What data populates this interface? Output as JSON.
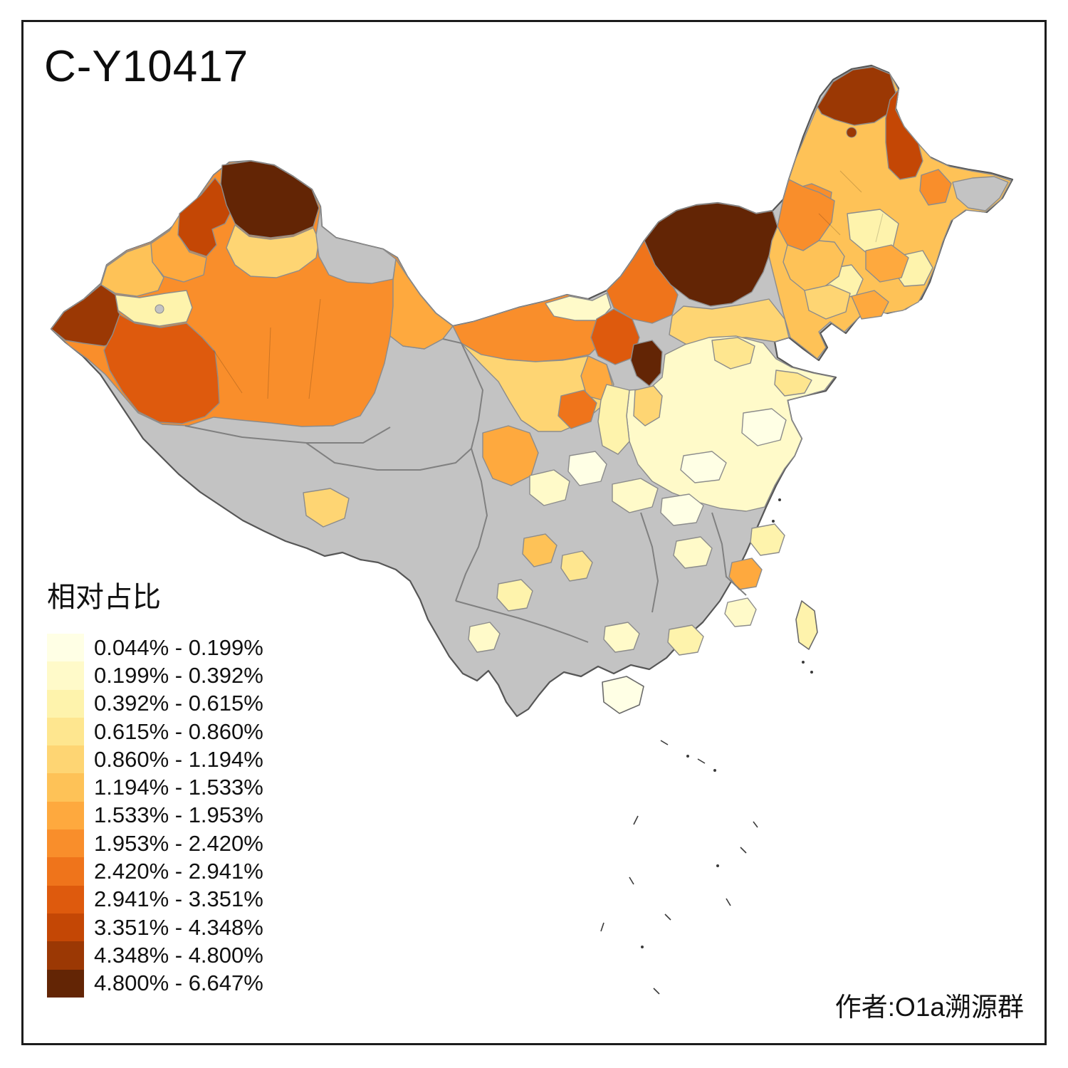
{
  "title": "C-Y10417",
  "legend": {
    "title": "相对占比",
    "items": [
      {
        "label": "0.044% - 0.199%",
        "color": "#FFFFE5"
      },
      {
        "label": "0.199% - 0.392%",
        "color": "#FFFAC9"
      },
      {
        "label": "0.392% - 0.615%",
        "color": "#FEF3AC"
      },
      {
        "label": "0.615% - 0.860%",
        "color": "#FEE68F"
      },
      {
        "label": "0.860% - 1.194%",
        "color": "#FED573"
      },
      {
        "label": "1.194% - 1.533%",
        "color": "#FEC257"
      },
      {
        "label": "1.533% - 1.953%",
        "color": "#FEA93E"
      },
      {
        "label": "1.953% - 2.420%",
        "color": "#F98E2B"
      },
      {
        "label": "2.420% - 2.941%",
        "color": "#EF741B"
      },
      {
        "label": "2.941% - 3.351%",
        "color": "#DE5A0D"
      },
      {
        "label": "3.351% - 4.348%",
        "color": "#C44705"
      },
      {
        "label": "4.348% - 4.800%",
        "color": "#9B3804"
      },
      {
        "label": "4.800% - 6.647%",
        "color": "#632505"
      }
    ]
  },
  "attribution": "作者:O1a溯源群",
  "map": {
    "no_data_color": "#C3C3C3",
    "border_color": "#8C8C8C",
    "outline_color": "#565656",
    "background": "#FFFFFF"
  }
}
